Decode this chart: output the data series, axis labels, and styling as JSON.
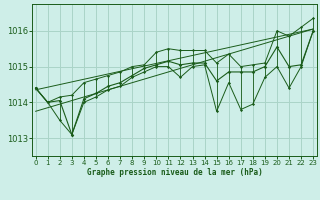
{
  "xlabel": "Graphe pression niveau de la mer (hPa)",
  "x_ticks": [
    0,
    1,
    2,
    3,
    4,
    5,
    6,
    7,
    8,
    9,
    10,
    11,
    12,
    13,
    14,
    15,
    16,
    17,
    18,
    19,
    20,
    21,
    22,
    23
  ],
  "y_ticks": [
    1013,
    1014,
    1015,
    1016
  ],
  "ylim": [
    1012.5,
    1016.75
  ],
  "xlim": [
    -0.3,
    23.3
  ],
  "bg_color": "#ceeee8",
  "grid_color": "#aad4c8",
  "line_color": "#1a5c1a",
  "marker_color": "#1a5c1a",
  "pressure_main": [
    1014.4,
    1014.0,
    1014.05,
    1013.1,
    1014.1,
    1014.25,
    1014.45,
    1014.55,
    1014.75,
    1014.95,
    1015.05,
    1015.15,
    1015.05,
    1015.1,
    1015.1,
    1014.6,
    1014.85,
    1014.85,
    1014.85,
    1015.0,
    1015.55,
    1015.0,
    1015.05,
    1016.0
  ],
  "pressure_high": [
    1014.4,
    1014.0,
    1014.15,
    1014.2,
    1014.55,
    1014.65,
    1014.75,
    1014.85,
    1015.0,
    1015.05,
    1015.4,
    1015.5,
    1015.45,
    1015.45,
    1015.45,
    1015.1,
    1015.35,
    1015.0,
    1015.05,
    1015.1,
    1016.0,
    1015.85,
    1016.1,
    1016.35
  ],
  "pressure_low": [
    1014.4,
    1014.0,
    1013.5,
    1013.1,
    1014.0,
    1014.15,
    1014.35,
    1014.45,
    1014.7,
    1014.85,
    1015.0,
    1015.0,
    1014.7,
    1015.0,
    1015.05,
    1013.75,
    1014.55,
    1013.8,
    1013.95,
    1014.7,
    1015.0,
    1014.4,
    1015.0,
    1016.0
  ],
  "trend1_x": [
    0,
    23
  ],
  "trend1_y": [
    1013.75,
    1016.05
  ],
  "trend2_x": [
    0,
    23
  ],
  "trend2_y": [
    1014.35,
    1016.05
  ]
}
